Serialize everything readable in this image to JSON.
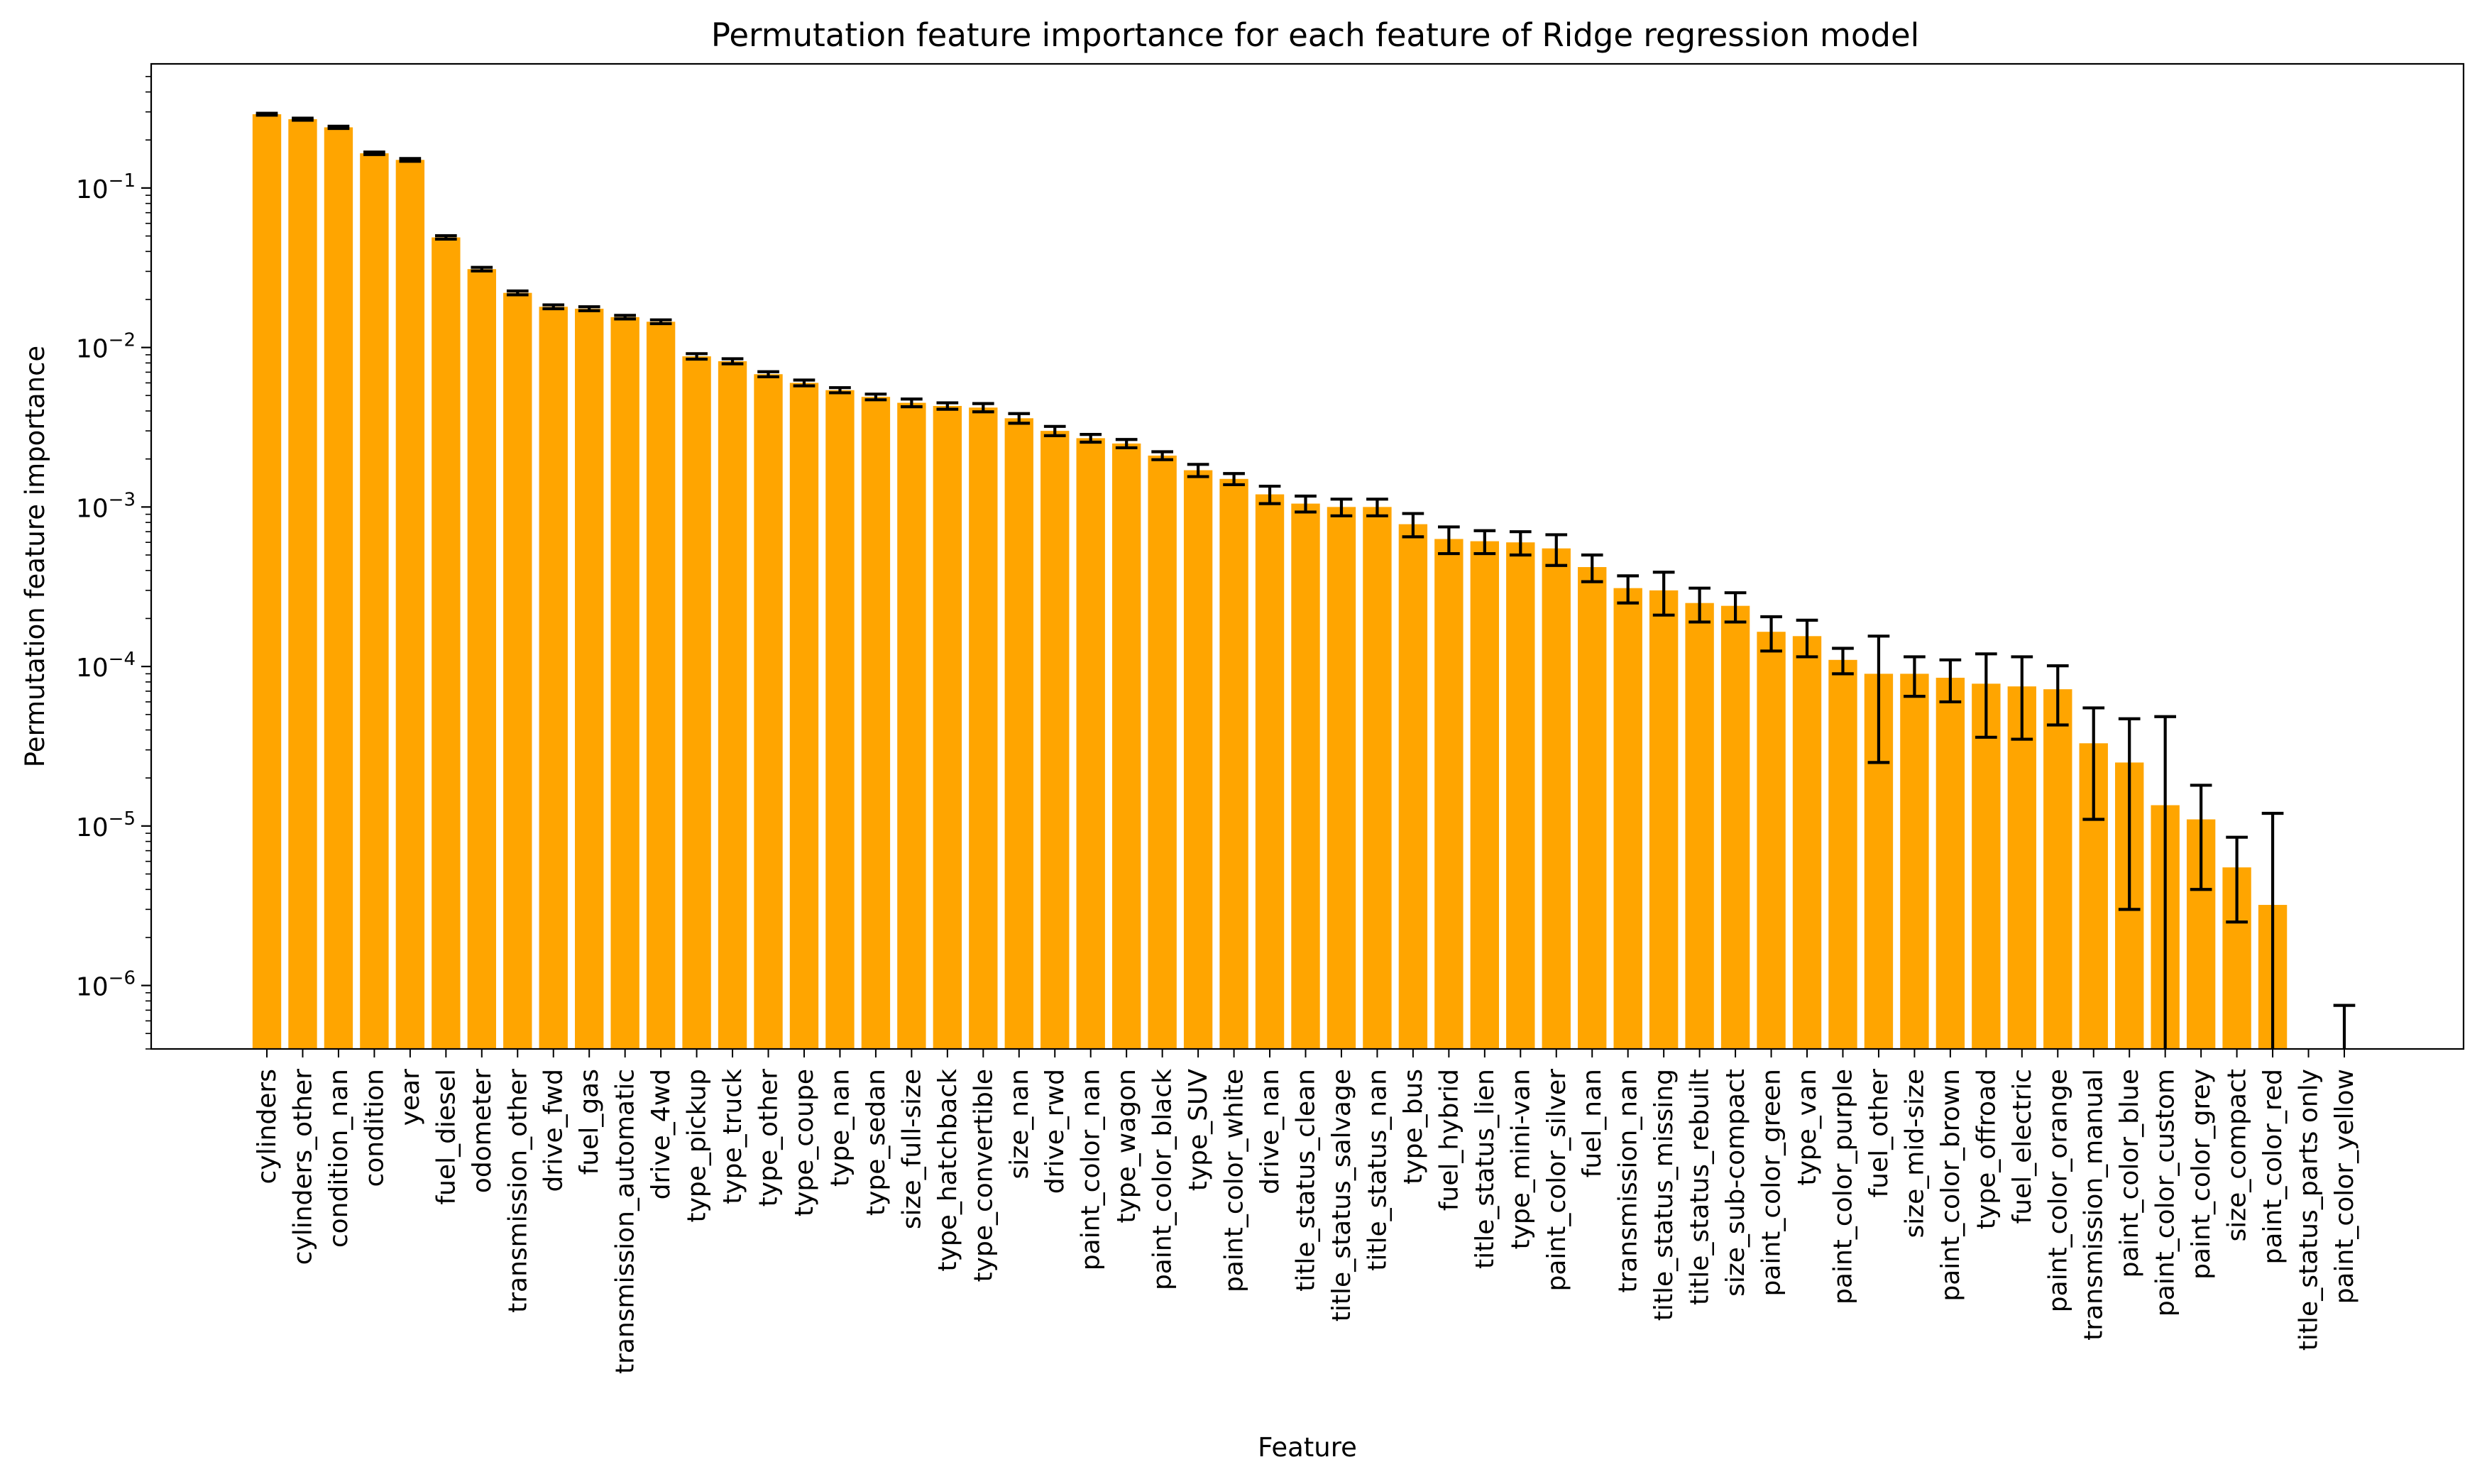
{
  "chart_data": {
    "type": "bar",
    "title": "Permutation feature importance for each feature of Ridge regression model",
    "xlabel": "Feature",
    "ylabel": "Permutation feature importance",
    "yscale": "log",
    "ylim": [
      4e-07,
      0.6
    ],
    "bar_color": "#ffa500",
    "errorbar_color": "#000000",
    "ytick_values": [
      1e-06,
      1e-05,
      0.0001,
      0.001,
      0.01,
      0.1
    ],
    "ytick_labels": [
      {
        "base": "10",
        "exp": "−6"
      },
      {
        "base": "10",
        "exp": "−5"
      },
      {
        "base": "10",
        "exp": "−4"
      },
      {
        "base": "10",
        "exp": "−3"
      },
      {
        "base": "10",
        "exp": "−2"
      },
      {
        "base": "10",
        "exp": "−1"
      }
    ],
    "categories": [
      "cylinders",
      "cylinders_other",
      "condition_nan",
      "condition",
      "year",
      "fuel_diesel",
      "odometer",
      "transmission_other",
      "drive_fwd",
      "fuel_gas",
      "transmission_automatic",
      "drive_4wd",
      "type_pickup",
      "type_truck",
      "type_other",
      "type_coupe",
      "type_nan",
      "type_sedan",
      "size_full-size",
      "type_hatchback",
      "type_convertible",
      "size_nan",
      "drive_rwd",
      "paint_color_nan",
      "type_wagon",
      "paint_color_black",
      "type_SUV",
      "paint_color_white",
      "drive_nan",
      "title_status_clean",
      "title_status_salvage",
      "title_status_nan",
      "type_bus",
      "fuel_hybrid",
      "title_status_lien",
      "type_mini-van",
      "paint_color_silver",
      "fuel_nan",
      "transmission_nan",
      "title_status_missing",
      "title_status_rebuilt",
      "size_sub-compact",
      "paint_color_green",
      "type_van",
      "paint_color_purple",
      "fuel_other",
      "size_mid-size",
      "paint_color_brown",
      "type_offroad",
      "fuel_electric",
      "paint_color_orange",
      "transmission_manual",
      "paint_color_blue",
      "paint_color_custom",
      "paint_color_grey",
      "size_compact",
      "paint_color_red",
      "title_status_parts only",
      "paint_color_yellow"
    ],
    "values": [
      0.29,
      0.27,
      0.24,
      0.165,
      0.15,
      0.049,
      0.031,
      0.022,
      0.018,
      0.0175,
      0.0155,
      0.0145,
      0.0088,
      0.0082,
      0.0068,
      0.006,
      0.0054,
      0.0049,
      0.0045,
      0.0043,
      0.0042,
      0.0036,
      0.003,
      0.0027,
      0.0025,
      0.0021,
      0.0017,
      0.0015,
      0.0012,
      0.00105,
      0.001,
      0.001,
      0.00078,
      0.00063,
      0.00061,
      0.0006,
      0.00055,
      0.00042,
      0.00031,
      0.0003,
      0.00025,
      0.00024,
      0.000165,
      0.000155,
      0.00011,
      9e-05,
      9e-05,
      8.5e-05,
      7.8e-05,
      7.5e-05,
      7.2e-05,
      3.3e-05,
      2.5e-05,
      1.35e-05,
      1.1e-05,
      5.5e-06,
      3.2e-06,
      0,
      0
    ],
    "errors": [
      0.004,
      0.004,
      0.004,
      0.003,
      0.003,
      0.0012,
      0.0008,
      0.0006,
      0.0005,
      0.0005,
      0.0004,
      0.0004,
      0.00035,
      0.0003,
      0.00025,
      0.00025,
      0.0002,
      0.0002,
      0.00025,
      0.0002,
      0.00025,
      0.00025,
      0.0002,
      0.00015,
      0.00015,
      0.00012,
      0.00015,
      0.00012,
      0.00015,
      0.00012,
      0.00012,
      0.00012,
      0.00013,
      0.00012,
      0.0001,
      0.0001,
      0.00012,
      8e-05,
      6e-05,
      9e-05,
      6e-05,
      5e-05,
      4e-05,
      4e-05,
      2e-05,
      6.5e-05,
      2.5e-05,
      2.5e-05,
      4.2e-05,
      4e-05,
      2.9e-05,
      2.2e-05,
      2.2e-05,
      3.5e-05,
      7e-06,
      3e-06,
      8.8e-06,
      0,
      7.5e-07
    ]
  }
}
